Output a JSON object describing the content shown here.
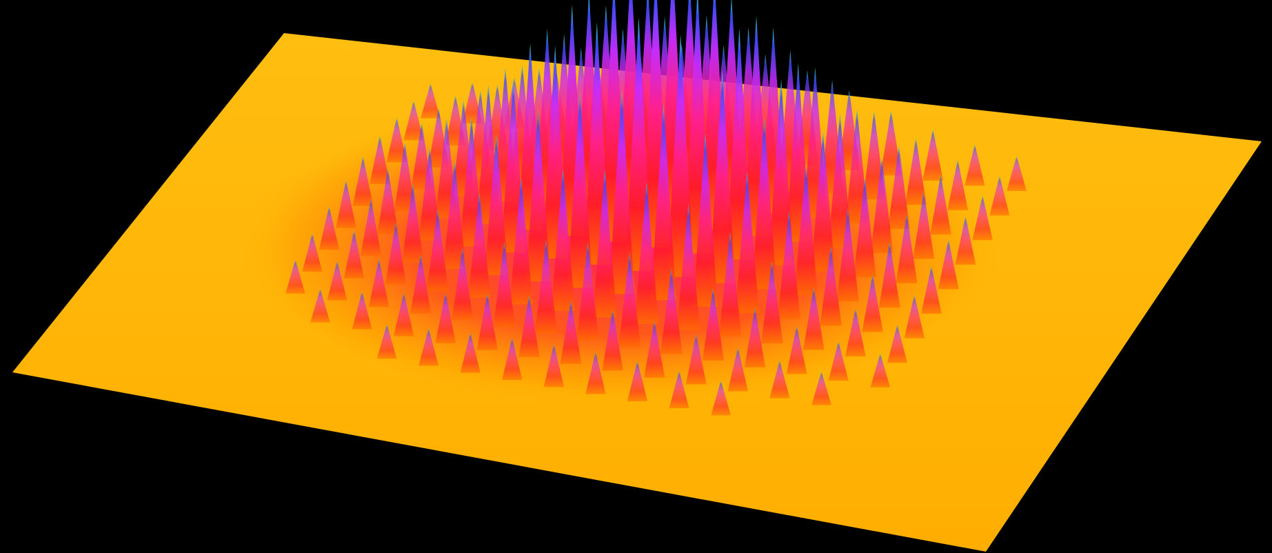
{
  "colors": {
    "background": "#000000",
    "plane": "#ffb800",
    "plane_edge": "#ff9a00",
    "ramp_low": "#ff6a00",
    "ramp_mid_low": "#ff1a2a",
    "ramp_mid": "#ff1f8c",
    "ramp_mid_high": "#c42cff",
    "ramp_high": "#3a4dff",
    "ramp_peak": "#3fe0c8"
  },
  "surface": {
    "kind": "optical-lattice-density-surface",
    "grid_columns": 15,
    "grid_rows": 11,
    "envelope": "gaussian"
  }
}
